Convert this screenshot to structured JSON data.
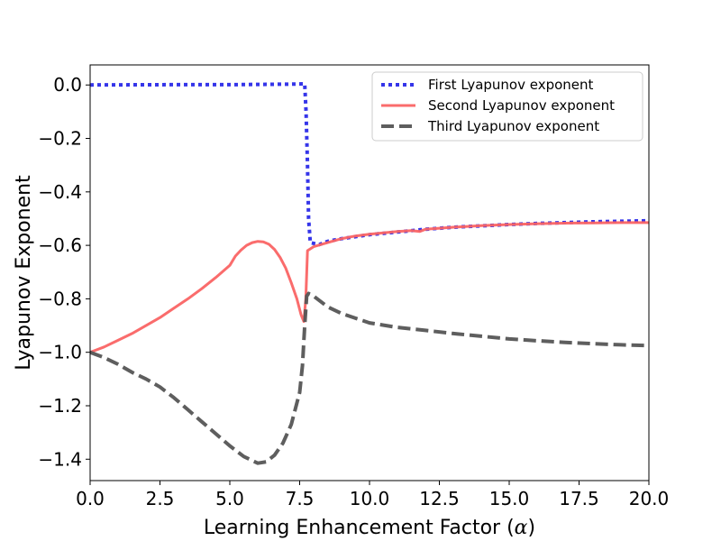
{
  "chart_data": {
    "type": "line",
    "title": "",
    "xlabel": "Learning Enhancement Factor (",
    "xlabel_symbol": "α",
    "xlabel_suffix": ")",
    "ylabel": "Lyapunov Exponent",
    "xlim": [
      0,
      20
    ],
    "ylim": [
      -1.48,
      0.075
    ],
    "grid": false,
    "legend_position": "top-right",
    "x_ticks": [
      0,
      2.5,
      5,
      7.5,
      10,
      12.5,
      15,
      17.5,
      20
    ],
    "x_tick_labels": [
      "0.0",
      "2.5",
      "5.0",
      "7.5",
      "10.0",
      "12.5",
      "15.0",
      "17.5",
      "20.0"
    ],
    "y_ticks": [
      0,
      -0.2,
      -0.4,
      -0.6,
      -0.8,
      -1.0,
      -1.2,
      -1.4
    ],
    "y_tick_labels": [
      "0.0",
      "−0.2",
      "−0.4",
      "−0.6",
      "−0.8",
      "−1.0",
      "−1.2",
      "−1.4"
    ],
    "series": [
      {
        "name": "First Lyapunov exponent",
        "color": "#2a2ae8",
        "style": "dotted",
        "points": [
          [
            0,
            0
          ],
          [
            3,
            0.001
          ],
          [
            5,
            0.001
          ],
          [
            7.2,
            0.003
          ],
          [
            7.68,
            0.004
          ],
          [
            7.73,
            -0.1
          ],
          [
            7.78,
            -0.3
          ],
          [
            7.82,
            -0.5
          ],
          [
            7.88,
            -0.59
          ],
          [
            8.2,
            -0.597
          ],
          [
            8.5,
            -0.585
          ],
          [
            9,
            -0.575
          ],
          [
            10,
            -0.56
          ],
          [
            11,
            -0.55
          ],
          [
            12,
            -0.54
          ],
          [
            13,
            -0.532
          ],
          [
            14,
            -0.527
          ],
          [
            15,
            -0.522
          ],
          [
            16,
            -0.518
          ],
          [
            17,
            -0.515
          ],
          [
            18,
            -0.512
          ],
          [
            19,
            -0.51
          ],
          [
            20,
            -0.508
          ]
        ]
      },
      {
        "name": "Second Lyapunov exponent",
        "color": "#fa6464",
        "style": "solid",
        "points": [
          [
            0,
            -1.0
          ],
          [
            0.5,
            -0.98
          ],
          [
            1,
            -0.955
          ],
          [
            1.5,
            -0.93
          ],
          [
            2,
            -0.9
          ],
          [
            2.5,
            -0.87
          ],
          [
            3,
            -0.835
          ],
          [
            3.5,
            -0.8
          ],
          [
            4,
            -0.762
          ],
          [
            4.5,
            -0.72
          ],
          [
            5,
            -0.675
          ],
          [
            5.2,
            -0.64
          ],
          [
            5.4,
            -0.618
          ],
          [
            5.6,
            -0.6
          ],
          [
            5.8,
            -0.59
          ],
          [
            6.0,
            -0.585
          ],
          [
            6.2,
            -0.587
          ],
          [
            6.4,
            -0.596
          ],
          [
            6.6,
            -0.615
          ],
          [
            6.8,
            -0.645
          ],
          [
            7.0,
            -0.685
          ],
          [
            7.2,
            -0.74
          ],
          [
            7.4,
            -0.8
          ],
          [
            7.55,
            -0.86
          ],
          [
            7.65,
            -0.885
          ],
          [
            7.72,
            -0.8
          ],
          [
            7.78,
            -0.62
          ],
          [
            8,
            -0.605
          ],
          [
            8.5,
            -0.59
          ],
          [
            9,
            -0.575
          ],
          [
            9.5,
            -0.565
          ],
          [
            10,
            -0.558
          ],
          [
            11,
            -0.548
          ],
          [
            11.5,
            -0.545
          ],
          [
            11.8,
            -0.548
          ],
          [
            12,
            -0.54
          ],
          [
            13,
            -0.532
          ],
          [
            14,
            -0.526
          ],
          [
            15,
            -0.522
          ],
          [
            16,
            -0.519
          ],
          [
            17,
            -0.517
          ],
          [
            18,
            -0.516
          ],
          [
            19,
            -0.515
          ],
          [
            20,
            -0.515
          ]
        ]
      },
      {
        "name": "Third Lyapunov exponent",
        "color": "#555555",
        "style": "dashed",
        "points": [
          [
            0,
            -1.0
          ],
          [
            0.5,
            -1.02
          ],
          [
            1,
            -1.045
          ],
          [
            1.5,
            -1.075
          ],
          [
            2,
            -1.1
          ],
          [
            2.5,
            -1.13
          ],
          [
            3,
            -1.17
          ],
          [
            3.5,
            -1.215
          ],
          [
            4,
            -1.26
          ],
          [
            4.5,
            -1.305
          ],
          [
            5,
            -1.35
          ],
          [
            5.5,
            -1.39
          ],
          [
            6.0,
            -1.415
          ],
          [
            6.3,
            -1.41
          ],
          [
            6.6,
            -1.385
          ],
          [
            6.9,
            -1.34
          ],
          [
            7.2,
            -1.27
          ],
          [
            7.5,
            -1.15
          ],
          [
            7.6,
            -1.05
          ],
          [
            7.68,
            -0.9
          ],
          [
            7.75,
            -0.79
          ],
          [
            7.82,
            -0.78
          ],
          [
            8.0,
            -0.79
          ],
          [
            8.5,
            -0.83
          ],
          [
            9,
            -0.855
          ],
          [
            10,
            -0.89
          ],
          [
            11,
            -0.907
          ],
          [
            12,
            -0.918
          ],
          [
            13,
            -0.93
          ],
          [
            14,
            -0.94
          ],
          [
            15,
            -0.95
          ],
          [
            16,
            -0.957
          ],
          [
            17,
            -0.963
          ],
          [
            18,
            -0.968
          ],
          [
            19,
            -0.972
          ],
          [
            20,
            -0.975
          ]
        ]
      }
    ]
  }
}
